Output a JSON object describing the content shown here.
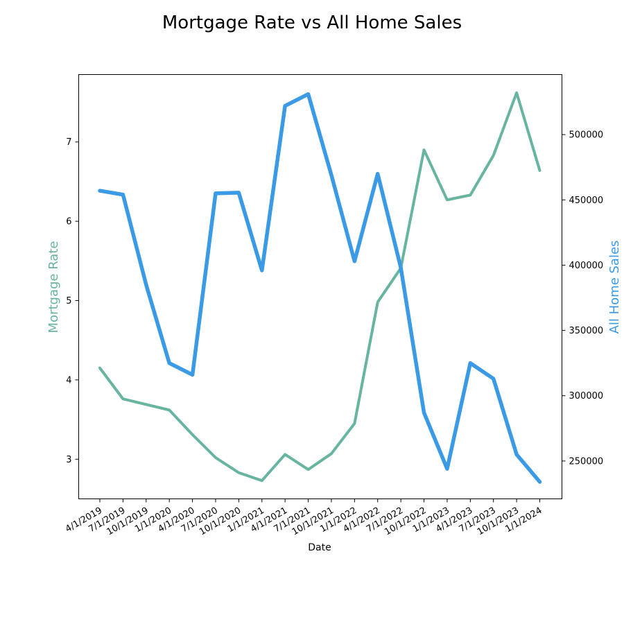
{
  "chart_data": {
    "type": "line",
    "title": "Mortgage Rate vs All Home Sales",
    "xlabel": "Date",
    "categories": [
      "4/1/2019",
      "7/1/2019",
      "10/1/2019",
      "1/1/2020",
      "4/1/2020",
      "7/1/2020",
      "10/1/2020",
      "1/1/2021",
      "4/1/2021",
      "7/1/2021",
      "10/1/2021",
      "1/1/2022",
      "4/1/2022",
      "7/1/2022",
      "10/1/2022",
      "1/1/2023",
      "4/1/2023",
      "7/1/2023",
      "10/1/2023",
      "1/1/2024"
    ],
    "left_axis": {
      "label": "Mortgage Rate",
      "color": "#67b4a0",
      "ylim": [
        2.5,
        7.85
      ],
      "ticks": [
        3,
        4,
        5,
        6,
        7
      ]
    },
    "right_axis": {
      "label": "All Home Sales",
      "color": "#3a9ae5",
      "ylim": [
        221000,
        546000
      ],
      "ticks": [
        250000,
        300000,
        350000,
        400000,
        450000,
        500000
      ]
    },
    "series": [
      {
        "axis": "left",
        "color": "#67b4a0",
        "values": [
          4.15,
          3.76,
          3.69,
          3.62,
          3.31,
          3.02,
          2.83,
          2.73,
          3.06,
          2.87,
          3.07,
          3.45,
          4.98,
          5.41,
          6.9,
          6.27,
          6.33,
          6.83,
          7.62,
          6.64
        ]
      },
      {
        "axis": "right",
        "color": "#3a9ae5",
        "values": [
          457000,
          454000,
          385000,
          325000,
          316000,
          455000,
          455500,
          396000,
          522000,
          531000,
          469000,
          403000,
          470000,
          398000,
          287000,
          244000,
          325000,
          313000,
          255000,
          234000
        ]
      }
    ]
  }
}
